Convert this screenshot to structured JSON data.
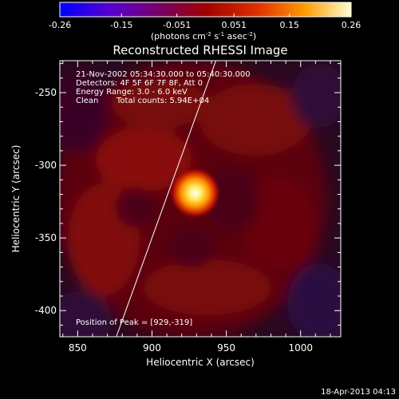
{
  "chart_data": {
    "type": "heatmap",
    "title": "Reconstructed RHESSI Image",
    "xlabel": "Heliocentric X (arcsec)",
    "ylabel": "Heliocentric Y (arcsec)",
    "xlim": [
      838,
      1027
    ],
    "ylim": [
      -418,
      -228
    ],
    "x_ticks": [
      850,
      900,
      950,
      1000
    ],
    "y_ticks": [
      -250,
      -300,
      -350,
      -400
    ],
    "grid": false,
    "colorbar": {
      "ticks": [
        "-0.26",
        "-0.15",
        "-0.051",
        "0.051",
        "0.15",
        "0.26"
      ],
      "range": [
        -0.26,
        0.26
      ],
      "unit_text": "(photons cm",
      "unit_sup1": "-2",
      "unit_mid": " s",
      "unit_sup2": "-1",
      "unit_mid2": " asec",
      "unit_sup3": "-2",
      "unit_end": ")"
    },
    "annotations": {
      "time_range": "21-Nov-2002 05:34:30.000 to 05:40:30.000",
      "detectors": "Detectors: 4F 5F 6F 7F 8F, Att 0",
      "energy": "Energy Range: 3.0 - 6.0 keV",
      "method": "Clean",
      "counts": "Total counts: 5.94E+04",
      "peak": "Position of Peak = [929,-319]"
    },
    "peak": {
      "x": 929,
      "y": -319,
      "value": 0.26
    },
    "limb_line": {
      "x1": 876,
      "y1": -418,
      "x2": 943,
      "y2": -228
    },
    "footer_date": "18-Apr-2013 04:13"
  },
  "colors": {
    "background": "#000000",
    "axes": "#ffffff",
    "colormap": [
      "#0000ff",
      "#6a00c8",
      "#7a0060",
      "#b00000",
      "#ff6000",
      "#ffd000",
      "#ffffff"
    ]
  }
}
